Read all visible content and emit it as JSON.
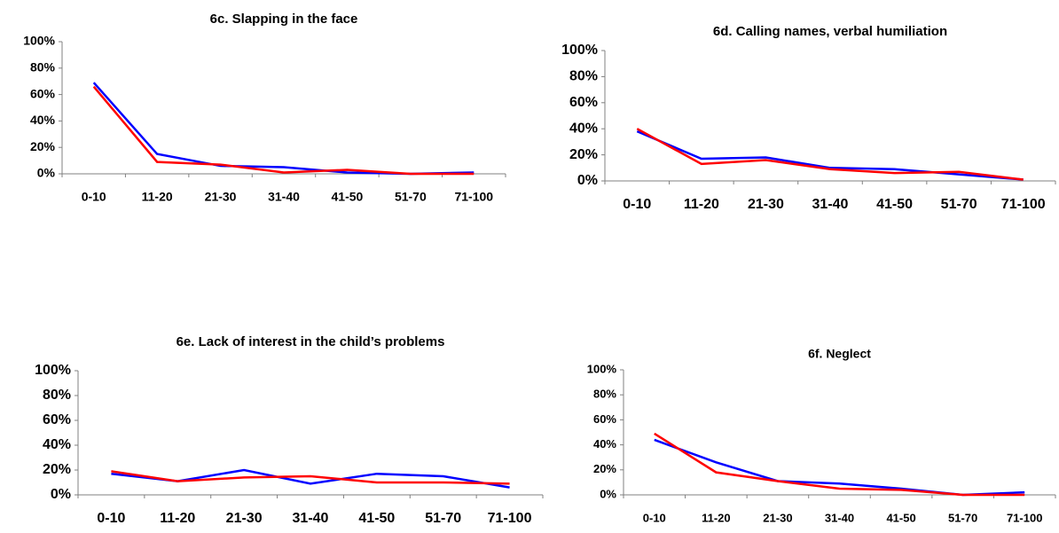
{
  "chart_data": [
    {
      "type": "line",
      "title": "6c. Slapping in the face",
      "categories": [
        "0-10",
        "11-20",
        "21-30",
        "31-40",
        "41-50",
        "51-70",
        "71-100"
      ],
      "series": [
        {
          "color": "#0000ff",
          "values": [
            69,
            15,
            6,
            5,
            1,
            0,
            1
          ]
        },
        {
          "color": "#ff0000",
          "values": [
            66,
            9,
            7,
            1,
            3,
            0,
            0
          ]
        }
      ],
      "ylim": [
        0,
        100
      ],
      "yticks": [
        {
          "value": 0,
          "label": "0%"
        },
        {
          "value": 20,
          "label": "20%"
        },
        {
          "value": 40,
          "label": "40%"
        },
        {
          "value": 60,
          "label": "60%"
        },
        {
          "value": 80,
          "label": "80%"
        },
        {
          "value": 100,
          "label": "100%"
        }
      ]
    },
    {
      "type": "line",
      "title": "6d. Calling names, verbal humiliation",
      "categories": [
        "0-10",
        "11-20",
        "21-30",
        "31-40",
        "41-50",
        "51-70",
        "71-100"
      ],
      "series": [
        {
          "color": "#0000ff",
          "values": [
            38,
            17,
            18,
            10,
            9,
            5,
            1
          ]
        },
        {
          "color": "#ff0000",
          "values": [
            40,
            13,
            16,
            9,
            6,
            7,
            1
          ]
        }
      ],
      "ylim": [
        0,
        100
      ],
      "yticks": [
        {
          "value": 0,
          "label": "0%"
        },
        {
          "value": 20,
          "label": "20%"
        },
        {
          "value": 40,
          "label": "40%"
        },
        {
          "value": 60,
          "label": "60%"
        },
        {
          "value": 80,
          "label": "80%"
        },
        {
          "value": 100,
          "label": "100%"
        }
      ]
    },
    {
      "type": "line",
      "title": "6e. Lack of interest in the child’s problems",
      "categories": [
        "0-10",
        "11-20",
        "21-30",
        "31-40",
        "41-50",
        "51-70",
        "71-100"
      ],
      "series": [
        {
          "color": "#0000ff",
          "values": [
            17,
            11,
            20,
            9,
            17,
            15,
            6
          ]
        },
        {
          "color": "#ff0000",
          "values": [
            19,
            11,
            14,
            15,
            10,
            10,
            9
          ]
        }
      ],
      "ylim": [
        0,
        100
      ],
      "yticks": [
        {
          "value": 0,
          "label": "0%"
        },
        {
          "value": 20,
          "label": "20%"
        },
        {
          "value": 40,
          "label": "40%"
        },
        {
          "value": 60,
          "label": "60%"
        },
        {
          "value": 80,
          "label": "80%"
        },
        {
          "value": 100,
          "label": "100%"
        }
      ]
    },
    {
      "type": "line",
      "title": "6f. Neglect",
      "categories": [
        "0-10",
        "11-20",
        "21-30",
        "31-40",
        "41-50",
        "51-70",
        "71-100"
      ],
      "series": [
        {
          "color": "#0000ff",
          "values": [
            44,
            26,
            11,
            9,
            5,
            0,
            2
          ]
        },
        {
          "color": "#ff0000",
          "values": [
            49,
            18,
            11,
            5,
            4,
            0,
            0
          ]
        }
      ],
      "ylim": [
        0,
        100
      ],
      "yticks": [
        {
          "value": 0,
          "label": "0%"
        },
        {
          "value": 20,
          "label": "20%"
        },
        {
          "value": 40,
          "label": "40%"
        },
        {
          "value": 60,
          "label": "60%"
        },
        {
          "value": 80,
          "label": "80%"
        },
        {
          "value": 100,
          "label": "100%"
        }
      ]
    }
  ]
}
